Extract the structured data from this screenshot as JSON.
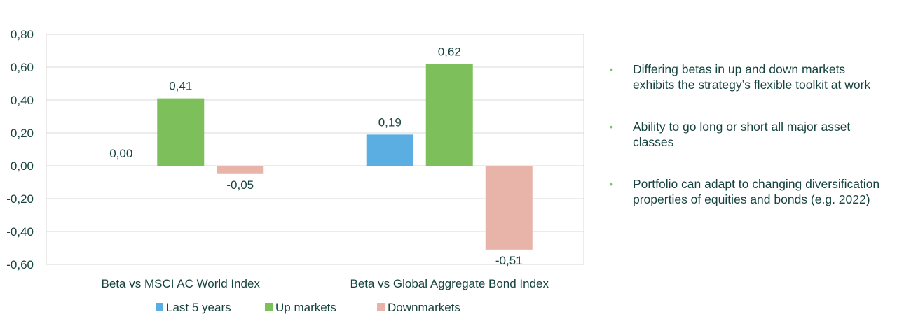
{
  "chart_data": {
    "type": "bar",
    "categories": [
      "Beta vs MSCI AC World Index",
      "Beta vs Global Aggregate Bond Index"
    ],
    "series": [
      {
        "name": "Last 5 years",
        "values": [
          0.0,
          0.19
        ],
        "labels": [
          "0,00",
          "0,19"
        ],
        "color": "#5aaee2"
      },
      {
        "name": "Up markets",
        "values": [
          0.41,
          0.62
        ],
        "labels": [
          "0,41",
          "0,62"
        ],
        "color": "#7dbf5b"
      },
      {
        "name": "Downmarkets",
        "values": [
          -0.05,
          -0.51
        ],
        "labels": [
          "-0,05",
          "-0,51"
        ],
        "color": "#e8b4aa"
      }
    ],
    "ylim": [
      -0.6,
      0.8
    ],
    "yticks": [
      "0,80",
      "0,60",
      "0,40",
      "0,20",
      "0,00",
      "-0,20",
      "-0,40",
      "-0,60"
    ],
    "grid": true,
    "legend_position": "bottom",
    "title": "",
    "xlabel": "",
    "ylabel": ""
  },
  "bullets": [
    "Differing betas in up and down markets exhibits the strategy’s flexible toolkit at work",
    "Ability to go long or short all major asset classes",
    "Portfolio can adapt to changing diversification properties of equities and bonds (e.g. 2022)"
  ],
  "colors": {
    "bullet_dot": "#7dbf5b",
    "text": "#16433f",
    "grid": "#d9d9d9"
  }
}
